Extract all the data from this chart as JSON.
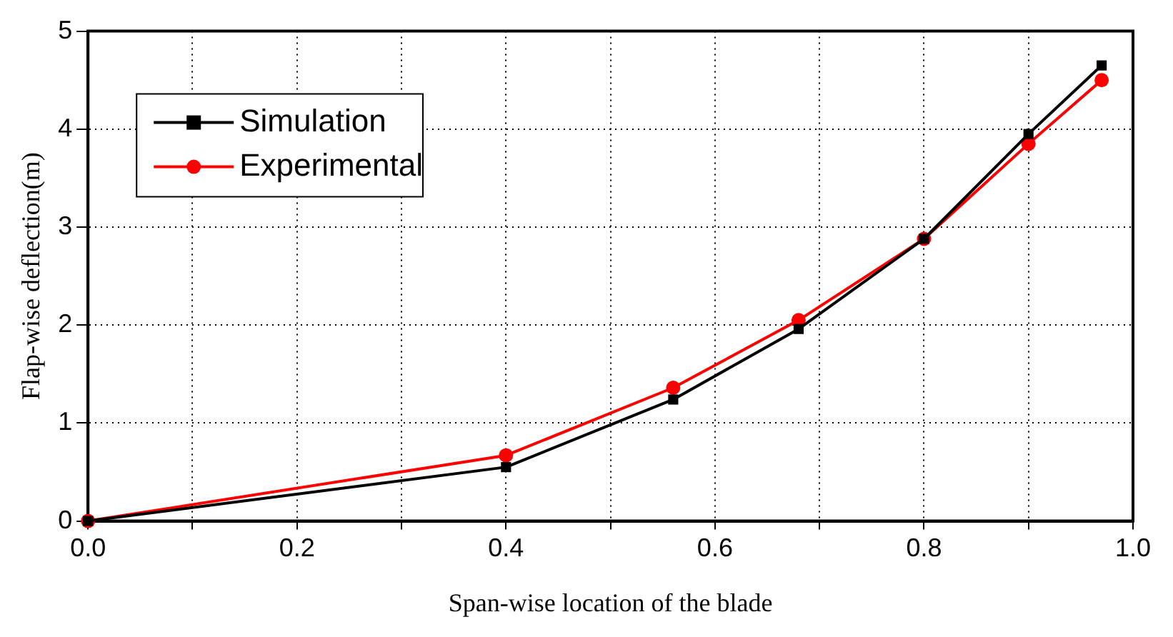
{
  "chart_data": {
    "type": "line",
    "xlabel": "Span-wise location of the blade",
    "ylabel": "Flap-wise deflection(m)",
    "x": [
      0,
      0.4,
      0.56,
      0.68,
      0.8,
      0.9,
      0.97
    ],
    "series": [
      {
        "name": "Simulation",
        "color": "#000000",
        "marker": "square",
        "values": [
          0,
          0.55,
          1.24,
          1.96,
          2.88,
          3.95,
          4.65
        ]
      },
      {
        "name": "Experimental",
        "color": "#ff0000",
        "marker": "circle",
        "values": [
          0,
          0.67,
          1.36,
          2.05,
          2.88,
          3.85,
          4.5
        ]
      }
    ],
    "xlim": [
      0,
      1
    ],
    "xticks": [
      {
        "value": 0,
        "label": "0.0"
      },
      {
        "value": 0.1,
        "label": null
      },
      {
        "value": 0.2,
        "label": "0.2"
      },
      {
        "value": 0.3,
        "label": null
      },
      {
        "value": 0.4,
        "label": "0.4"
      },
      {
        "value": 0.5,
        "label": null
      },
      {
        "value": 0.6,
        "label": "0.6"
      },
      {
        "value": 0.7,
        "label": null
      },
      {
        "value": 0.8,
        "label": "0.8"
      },
      {
        "value": 0.9,
        "label": null
      },
      {
        "value": 1,
        "label": "1.0"
      }
    ],
    "ylim": [
      0,
      5
    ],
    "yticks": [
      0,
      1,
      2,
      3,
      4,
      5
    ],
    "grid": true,
    "legend": "top left",
    "line_style": "solid"
  }
}
